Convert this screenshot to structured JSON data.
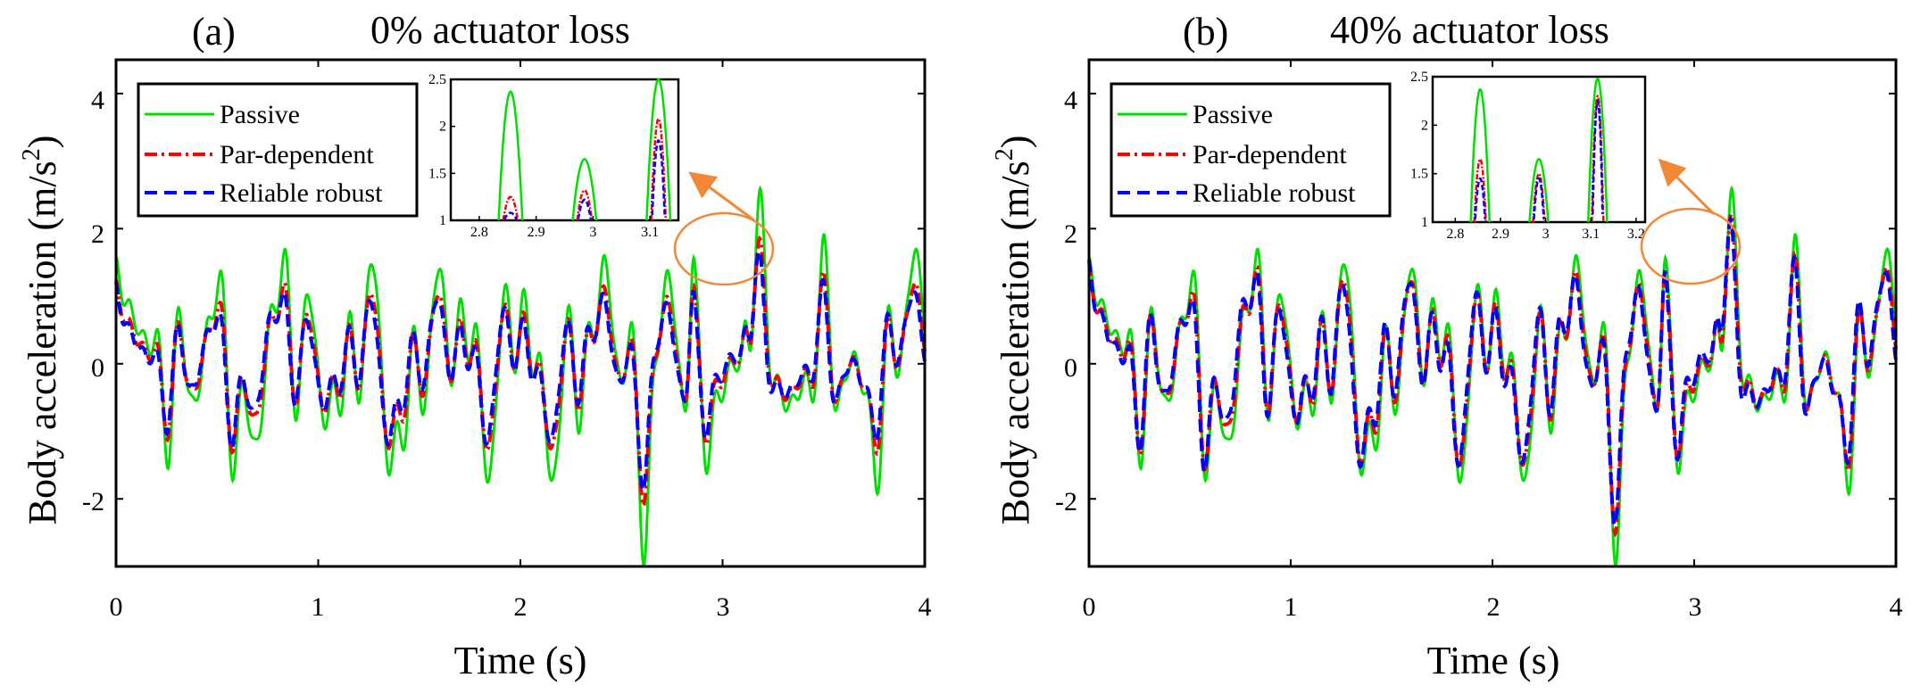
{
  "chart_data": [
    {
      "type": "line",
      "panel_label": "(a)",
      "title": "0% actuator loss",
      "xlabel": "Time (s)",
      "ylabel_main": "Body acceleration (m/s",
      "ylabel_sup": "2",
      "ylabel_close": ")",
      "xlim": [
        0,
        4
      ],
      "ylim": [
        -3,
        4.5
      ],
      "xticks": [
        "0",
        "1",
        "2",
        "3",
        "4"
      ],
      "yticks": [
        "-2",
        "0",
        "2",
        "4"
      ],
      "legend": [
        "Passive",
        "Par-dependent",
        "Reliable robust"
      ],
      "series": [
        {
          "name": "Passive",
          "color": "#00e000",
          "style": "solid",
          "scale": 1.0
        },
        {
          "name": "Par-dependent",
          "color": "#ff0000",
          "style": "dashdot",
          "scale": 0.72
        },
        {
          "name": "Reliable robust",
          "color": "#0000ff",
          "style": "dashed",
          "scale": 0.66
        }
      ],
      "inset": {
        "xlim": [
          2.75,
          3.15
        ],
        "ylim": [
          1,
          2.5
        ],
        "xticks": [
          "2.8",
          "2.9",
          "3",
          "3.1"
        ],
        "yticks": [
          "1",
          "1.5",
          "2",
          "2.5"
        ],
        "peaks": {
          "x": [
            2.855,
            2.985,
            3.115
          ],
          "Passive": [
            2.37,
            1.65,
            2.5
          ],
          "Par-dependent": [
            1.25,
            1.32,
            2.08
          ],
          "Reliable robust": [
            1.08,
            1.22,
            1.85
          ]
        }
      }
    },
    {
      "type": "line",
      "panel_label": "(b)",
      "title": "40% actuator loss",
      "xlabel": "Time (s)",
      "ylabel_main": "Body acceleration (m/s",
      "ylabel_sup": "2",
      "ylabel_close": ")",
      "xlim": [
        0,
        4
      ],
      "ylim": [
        -3,
        4.5
      ],
      "xticks": [
        "0",
        "1",
        "2",
        "3",
        "4"
      ],
      "yticks": [
        "-2",
        "0",
        "2",
        "4"
      ],
      "legend": [
        "Passive",
        "Par-dependent",
        "Reliable robust"
      ],
      "series": [
        {
          "name": "Passive",
          "color": "#00e000",
          "style": "solid",
          "scale": 1.0
        },
        {
          "name": "Par-dependent",
          "color": "#ff0000",
          "style": "dashdot",
          "scale": 0.86
        },
        {
          "name": "Reliable robust",
          "color": "#0000ff",
          "style": "dashed",
          "scale": 0.84
        }
      ],
      "inset": {
        "xlim": [
          2.75,
          3.22
        ],
        "ylim": [
          1,
          2.5
        ],
        "xticks": [
          "2.8",
          "2.9",
          "3",
          "3.1",
          "3.2"
        ],
        "yticks": [
          "1",
          "1.5",
          "2",
          "2.5"
        ],
        "peaks": {
          "x": [
            2.855,
            2.985,
            3.115
          ],
          "Passive": [
            2.37,
            1.65,
            2.48
          ],
          "Par-dependent": [
            1.65,
            1.5,
            2.3
          ],
          "Reliable robust": [
            1.45,
            1.45,
            2.25
          ]
        }
      }
    }
  ]
}
